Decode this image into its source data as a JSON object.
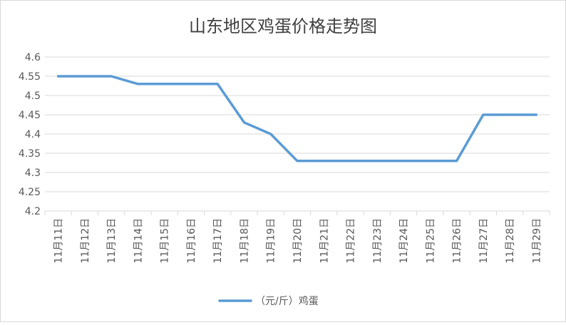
{
  "chart_data": {
    "type": "line",
    "title": "山东地区鸡蛋价格走势图",
    "categories": [
      "11月11日",
      "11月12日",
      "11月13日",
      "11月14日",
      "11月15日",
      "11月16日",
      "11月17日",
      "11月18日",
      "11月19日",
      "11月20日",
      "11月21日",
      "11月22日",
      "11月23日",
      "11月24日",
      "11月25日",
      "11月26日",
      "11月27日",
      "11月28日",
      "11月29日"
    ],
    "series": [
      {
        "name": "（元/斤）鸡蛋",
        "values": [
          4.55,
          4.55,
          4.55,
          4.53,
          4.53,
          4.53,
          4.53,
          4.43,
          4.4,
          4.33,
          4.33,
          4.33,
          4.33,
          4.33,
          4.33,
          4.33,
          4.45,
          4.45,
          4.45
        ],
        "color": "#5b9bd5"
      }
    ],
    "yticks": [
      "4.2",
      "4.25",
      "4.3",
      "4.35",
      "4.4",
      "4.45",
      "4.5",
      "4.55",
      "4.6"
    ],
    "ylim": [
      4.2,
      4.6
    ],
    "xlabel": "",
    "ylabel": "",
    "grid": true,
    "legend": "bottom"
  }
}
